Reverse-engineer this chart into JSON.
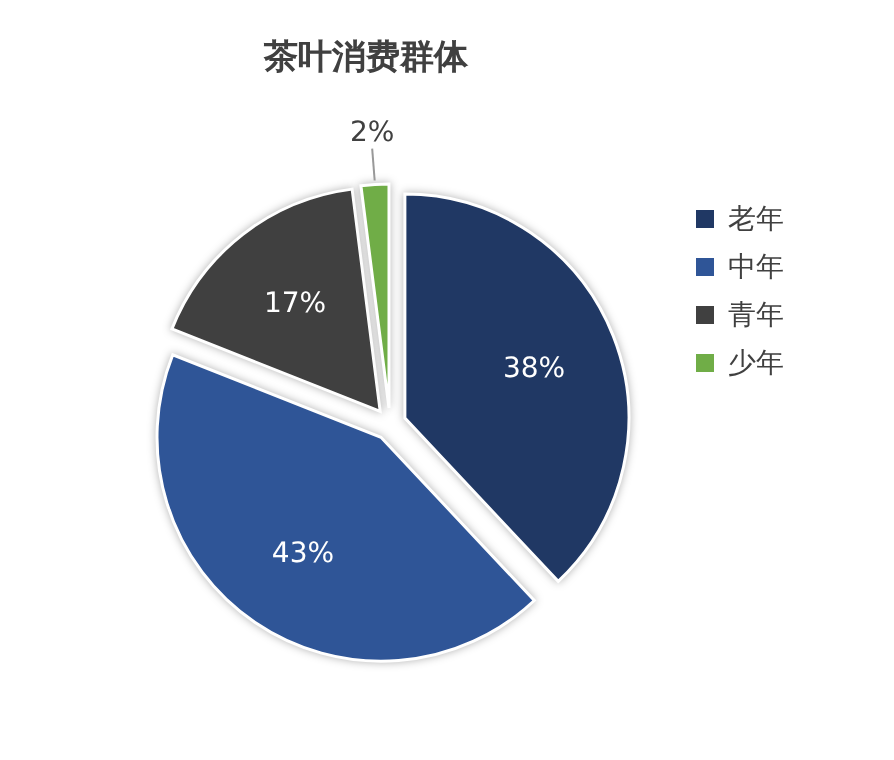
{
  "chart_data": {
    "type": "pie",
    "title": "茶叶消费群体",
    "categories": [
      "老年",
      "中年",
      "青年",
      "少年"
    ],
    "values": [
      38,
      43,
      17,
      2
    ],
    "colors": [
      "#203864",
      "#2f5597",
      "#404040",
      "#70ad47"
    ],
    "value_labels": [
      "38%",
      "43%",
      "17%",
      "2%"
    ],
    "legend": "right"
  }
}
